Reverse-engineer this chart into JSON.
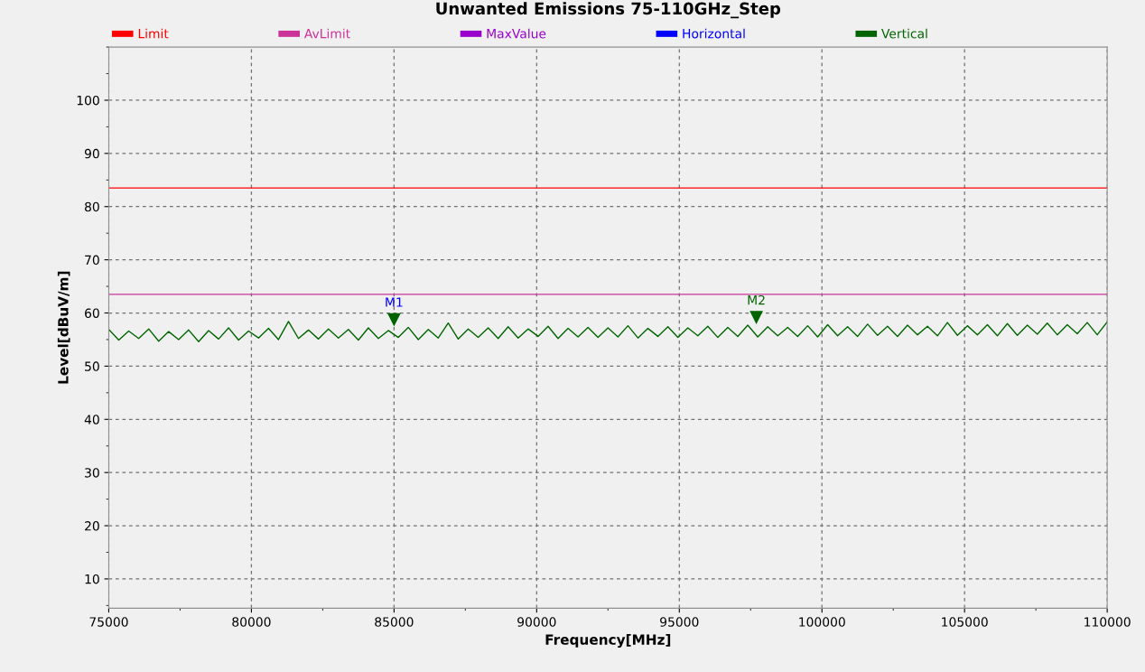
{
  "chart_data": {
    "type": "line",
    "title": "Unwanted Emissions 75-110GHz_Step",
    "xlabel": "Frequency[MHz]",
    "ylabel": "Level[dBuV/m]",
    "xlim": [
      75000,
      110000
    ],
    "xticks": [
      75000,
      80000,
      85000,
      90000,
      95000,
      100000,
      105000,
      110000
    ],
    "ylim": [
      4.5,
      110
    ],
    "yticks": [
      10,
      20,
      30,
      40,
      50,
      60,
      70,
      80,
      90,
      100
    ],
    "grid": true,
    "legend": "top",
    "line_style": "solid",
    "marker": "none",
    "series": [
      {
        "name": "Limit",
        "color": "#ff0000",
        "x": [
          75000,
          110000
        ],
        "values": [
          83.5,
          83.5
        ]
      },
      {
        "name": "AvLimit",
        "color": "#cc3399",
        "x": [
          75000,
          110000
        ],
        "values": [
          63.5,
          63.5
        ]
      },
      {
        "name": "MaxValue",
        "color": "#9900cc"
      },
      {
        "name": "Horizontal",
        "color": "#0000ff"
      },
      {
        "name": "Vertical",
        "color": "#006400",
        "x": [
          75000,
          75350,
          75700,
          76050,
          76400,
          76750,
          77100,
          77450,
          77800,
          78150,
          78500,
          78850,
          79200,
          79550,
          79900,
          80250,
          80600,
          80950,
          81300,
          81650,
          82000,
          82350,
          82700,
          83050,
          83400,
          83750,
          84100,
          84450,
          84800,
          85150,
          85500,
          85850,
          86200,
          86550,
          86900,
          87250,
          87600,
          87950,
          88300,
          88650,
          89000,
          89350,
          89700,
          90050,
          90400,
          90750,
          91100,
          91450,
          91800,
          92150,
          92500,
          92850,
          93200,
          93550,
          93900,
          94250,
          94600,
          94950,
          95300,
          95650,
          96000,
          96350,
          96700,
          97050,
          97400,
          97750,
          98100,
          98450,
          98800,
          99150,
          99500,
          99850,
          100200,
          100550,
          100900,
          101250,
          101600,
          101950,
          102300,
          102650,
          103000,
          103350,
          103700,
          104050,
          104400,
          104750,
          105100,
          105450,
          105800,
          106150,
          106500,
          106850,
          107200,
          107550,
          107900,
          108250,
          108600,
          108950,
          109300,
          109650,
          110000
        ],
        "values": [
          56.9,
          54.9,
          56.6,
          55.2,
          57.0,
          54.7,
          56.5,
          55.0,
          56.8,
          54.6,
          56.7,
          55.1,
          57.2,
          54.9,
          56.6,
          55.3,
          57.1,
          55.0,
          58.4,
          55.2,
          56.8,
          55.1,
          57.0,
          55.3,
          56.9,
          54.9,
          57.2,
          55.2,
          56.7,
          55.4,
          57.3,
          55.0,
          56.9,
          55.3,
          58.1,
          55.1,
          57.0,
          55.4,
          57.2,
          55.2,
          57.4,
          55.3,
          57.0,
          55.6,
          57.5,
          55.2,
          57.1,
          55.5,
          57.3,
          55.4,
          57.2,
          55.5,
          57.6,
          55.3,
          57.1,
          55.6,
          57.4,
          55.4,
          57.2,
          55.7,
          57.5,
          55.4,
          57.3,
          55.6,
          57.7,
          55.5,
          57.4,
          55.7,
          57.3,
          55.6,
          57.6,
          55.5,
          57.8,
          55.7,
          57.4,
          55.6,
          57.9,
          55.8,
          57.5,
          55.6,
          57.7,
          55.9,
          57.5,
          55.7,
          58.2,
          55.8,
          57.6,
          55.9,
          57.8,
          55.7,
          58.0,
          55.8,
          57.7,
          56.0,
          58.1,
          55.9,
          57.8,
          56.1,
          58.2,
          55.9,
          58.3
        ]
      }
    ],
    "annotations": [
      {
        "text": "M1",
        "x": 85000,
        "y": 58.8
      },
      {
        "text": "M2",
        "x": 97700,
        "y": 59.2
      }
    ]
  }
}
